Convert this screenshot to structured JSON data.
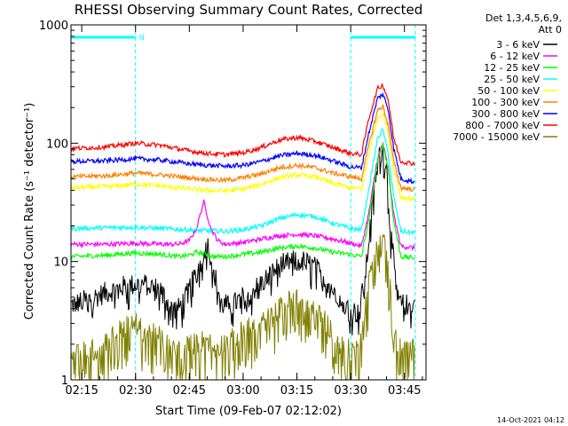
{
  "chart_data": {
    "type": "line",
    "title": "RHESSI Observing Summary Count Rates, Corrected",
    "xlabel": "Start Time (09-Feb-07 02:12:02)",
    "ylabel": "Corrected Count Rate (s⁻¹ detector⁻¹)",
    "x_unit": "minutes after 02:12:02",
    "xlim": [
      0,
      99
    ],
    "ylim": [
      1,
      1000
    ],
    "yscale": "log",
    "x_ticks": [
      {
        "value": 3,
        "label": "02:15"
      },
      {
        "value": 18,
        "label": "02:30"
      },
      {
        "value": 33,
        "label": "02:45"
      },
      {
        "value": 48,
        "label": "03:00"
      },
      {
        "value": 63,
        "label": "03:15"
      },
      {
        "value": 78,
        "label": "03:30"
      },
      {
        "value": 93,
        "label": "03:45"
      }
    ],
    "y_ticks": [
      {
        "value": 1,
        "label": "1"
      },
      {
        "value": 10,
        "label": "10"
      },
      {
        "value": 100,
        "label": "100"
      },
      {
        "value": 1000,
        "label": "1000"
      }
    ],
    "legend_header": [
      "Det 1,3,4,5,6,9,",
      "Att 0"
    ],
    "legend_position": "right",
    "timestamp": "14-Oct-2021 04:12",
    "night_bars": [
      {
        "x0": 0,
        "x1": 18,
        "label": "N"
      },
      {
        "x0": 78,
        "x1": 96,
        "label": ""
      }
    ],
    "night_bar_color": "#00ffff",
    "series": [
      {
        "name": "3 - 6 keV",
        "color": "#000000",
        "x": [
          0,
          5,
          10,
          15,
          20,
          25,
          28,
          30,
          32,
          35,
          38,
          40,
          42,
          45,
          48,
          50,
          53,
          56,
          59,
          62,
          65,
          68,
          71,
          74,
          76,
          78,
          80,
          82,
          84,
          85.5,
          87,
          88,
          89,
          90.5,
          92,
          94,
          96
        ],
        "y": [
          4.3,
          4.8,
          5.5,
          6.2,
          6.5,
          5.8,
          4,
          4,
          5,
          8,
          14.5,
          8,
          4.3,
          4.3,
          5,
          5.5,
          6.5,
          8,
          9.5,
          10,
          10,
          9,
          7,
          5.5,
          4.5,
          4,
          3.6,
          7,
          30,
          70,
          92,
          60,
          20,
          7,
          4.3,
          4.3,
          4.3
        ]
      },
      {
        "name": "6 - 12 keV",
        "color": "#ff00ff",
        "x": [
          0,
          10,
          18,
          25,
          30,
          33,
          35,
          37,
          39,
          41,
          43,
          48,
          53,
          58,
          63,
          68,
          73,
          78,
          81,
          83,
          85.5,
          87,
          88.5,
          90,
          92,
          96
        ],
        "y": [
          14,
          14,
          14.3,
          14,
          14,
          15,
          19,
          32,
          19,
          15,
          14,
          14.5,
          15.5,
          16.5,
          17,
          16.5,
          15.5,
          14.3,
          13.5,
          25,
          75,
          100,
          60,
          25,
          13.5,
          13
        ]
      },
      {
        "name": "12 - 25 keV",
        "color": "#00ff00",
        "x": [
          0,
          10,
          18,
          25,
          30,
          33,
          35,
          38,
          40,
          43,
          48,
          53,
          58,
          63,
          68,
          73,
          78,
          81,
          83,
          85.5,
          87,
          88.5,
          90,
          92,
          96
        ],
        "y": [
          11,
          11.3,
          11.8,
          11.5,
          11,
          11.3,
          12,
          11.5,
          11,
          11,
          11.5,
          12,
          13,
          13.5,
          13,
          12,
          11.5,
          11,
          22,
          70,
          98,
          60,
          22,
          11,
          10.7
        ]
      },
      {
        "name": "25 - 50 keV",
        "color": "#00ffff",
        "x": [
          0,
          10,
          18,
          25,
          33,
          38,
          43,
          48,
          53,
          58,
          63,
          68,
          73,
          78,
          81,
          83,
          85.5,
          87,
          88.5,
          90,
          92,
          96
        ],
        "y": [
          19,
          19.3,
          19.5,
          19,
          18.5,
          18.2,
          18,
          18.5,
          20,
          23,
          25,
          24,
          21,
          19,
          18.5,
          40,
          110,
          130,
          80,
          35,
          18,
          17.5
        ]
      },
      {
        "name": "50 - 100 keV",
        "color": "#ffff00",
        "x": [
          0,
          10,
          18,
          25,
          33,
          38,
          43,
          48,
          53,
          58,
          63,
          68,
          73,
          78,
          81,
          83,
          85.5,
          87,
          88.5,
          90,
          92,
          96
        ],
        "y": [
          42,
          43,
          45,
          43.5,
          41,
          40,
          39.5,
          41,
          45,
          51,
          54,
          52,
          46,
          42,
          41,
          80,
          165,
          180,
          120,
          60,
          35,
          33.5
        ]
      },
      {
        "name": "100 - 300 keV",
        "color": "#ff8000",
        "x": [
          0,
          10,
          18,
          25,
          33,
          38,
          43,
          48,
          53,
          58,
          63,
          68,
          73,
          78,
          81,
          83,
          85.5,
          87,
          88.5,
          90,
          92,
          96
        ],
        "y": [
          52,
          53,
          56,
          54,
          51,
          49.5,
          48.5,
          51,
          55,
          62,
          65,
          62,
          56,
          52,
          50,
          95,
          190,
          205,
          140,
          70,
          42,
          40.5
        ]
      },
      {
        "name": "300 - 800 keV",
        "color": "#0000ff",
        "x": [
          0,
          10,
          18,
          25,
          33,
          38,
          43,
          48,
          53,
          58,
          63,
          68,
          73,
          78,
          81,
          83,
          85.5,
          87,
          88.5,
          90,
          92,
          96
        ],
        "y": [
          70,
          71,
          74,
          72,
          67,
          65,
          64,
          65,
          70,
          78,
          82,
          79,
          71,
          63,
          62,
          120,
          240,
          260,
          190,
          90,
          50,
          47
        ]
      },
      {
        "name": "800 - 7000 keV",
        "color": "#ff0000",
        "x": [
          0,
          10,
          18,
          25,
          33,
          38,
          43,
          48,
          53,
          58,
          63,
          68,
          73,
          78,
          81,
          83,
          85.5,
          87,
          88.5,
          90,
          92,
          96
        ],
        "y": [
          90,
          93,
          100,
          96,
          86,
          82,
          80,
          83,
          92,
          106,
          112,
          104,
          92,
          82,
          80,
          160,
          290,
          310,
          230,
          110,
          70,
          67
        ]
      },
      {
        "name": "7000 - 15000 keV",
        "color": "#808000",
        "x": [
          0,
          8,
          10,
          15,
          18,
          20,
          25,
          28,
          30,
          34,
          38,
          40,
          42,
          45,
          48,
          52,
          56,
          58,
          60,
          63,
          65,
          68,
          71,
          74,
          77,
          78,
          80,
          82,
          84,
          85.5,
          87,
          88,
          89,
          90.5,
          92,
          94,
          96
        ],
        "y": [
          1.8,
          1.8,
          2.2,
          2.8,
          3,
          2.6,
          2.3,
          1.8,
          1.8,
          2,
          2.2,
          1.8,
          2,
          2.2,
          2.6,
          2.9,
          3.4,
          4,
          4.5,
          5,
          4.5,
          4,
          3.2,
          2.2,
          1.8,
          1.8,
          1.8,
          4,
          10,
          16,
          18,
          12,
          6,
          2.2,
          1.8,
          1.8,
          1.8
        ]
      }
    ]
  }
}
